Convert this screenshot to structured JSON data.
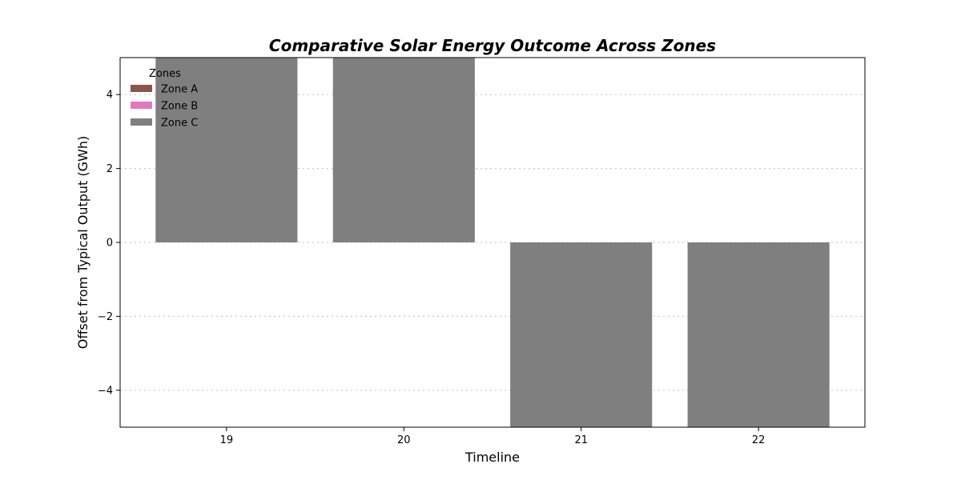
{
  "chart_data": {
    "type": "bar",
    "title": "Comparative Solar Energy Outcome Across Zones",
    "xlabel": "Timeline",
    "ylabel": "Offset from Typical Output (GWh)",
    "categories": [
      "19",
      "20",
      "21",
      "22"
    ],
    "ylim": [
      -5,
      5
    ],
    "yticks": [
      -4,
      -2,
      0,
      2,
      4
    ],
    "ytick_labels": [
      "−4",
      "−2",
      "0",
      "2",
      "4"
    ],
    "grid": "y-dotted",
    "legend": {
      "title": "Zones",
      "placement": "top-left"
    },
    "series": [
      {
        "name": "Zone A",
        "color": "#8c564b",
        "values": [
          0,
          0,
          0,
          0
        ]
      },
      {
        "name": "Zone B",
        "color": "#e377c2",
        "values": [
          0,
          0,
          0,
          0
        ]
      },
      {
        "name": "Zone C",
        "color": "#7f7f7f",
        "values": [
          5.0,
          5.0,
          -5.0,
          -5.0
        ]
      }
    ]
  }
}
